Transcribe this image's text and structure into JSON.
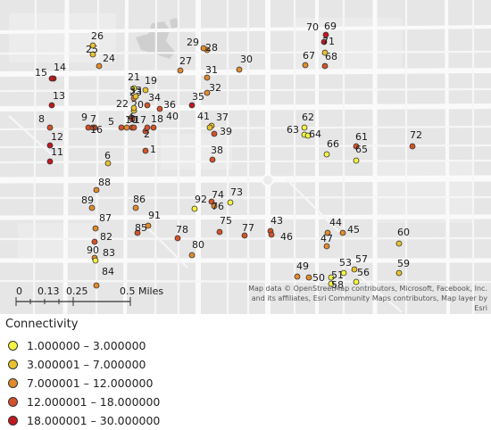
{
  "map": {
    "attribution": "Map data © OpenStreetMap contributors, Microsoft, Facebook, Inc. and its affiliates, Esri Community Maps contributors, Map layer by Esri",
    "scale_bar": {
      "labels": [
        "0",
        "0.13",
        "0.25",
        "0.5 Miles"
      ]
    }
  },
  "legend": {
    "title": "Connectivity",
    "classes": [
      {
        "label": "1.000000 – 3.000000",
        "color": "#f5f542"
      },
      {
        "label": "3.000001 – 7.000000",
        "color": "#e8c22e"
      },
      {
        "label": "7.000001 – 12.000000",
        "color": "#e28a2c"
      },
      {
        "label": "12.000001 – 18.000000",
        "color": "#d4522a"
      },
      {
        "label": "18.000001 – 30.000000",
        "color": "#c01820"
      }
    ]
  },
  "sites": [
    {
      "id": "1",
      "class": 4
    },
    {
      "id": "2",
      "class": 4
    },
    {
      "id": "3",
      "class": 4
    },
    {
      "id": "4",
      "class": 4
    },
    {
      "id": "5",
      "class": 4
    },
    {
      "id": "6",
      "class": 2
    },
    {
      "id": "7",
      "class": 4
    },
    {
      "id": "8",
      "class": 4
    },
    {
      "id": "9",
      "class": 4
    },
    {
      "id": "10",
      "class": 3
    },
    {
      "id": "11",
      "class": 5
    },
    {
      "id": "12",
      "class": 5
    },
    {
      "id": "13",
      "class": 5
    },
    {
      "id": "14",
      "class": 5
    },
    {
      "id": "15",
      "class": 5
    },
    {
      "id": "16",
      "class": 4
    },
    {
      "id": "17",
      "class": 4
    },
    {
      "id": "18",
      "class": 4
    },
    {
      "id": "19",
      "class": 2
    },
    {
      "id": "20",
      "class": 2
    },
    {
      "id": "21",
      "class": 1
    },
    {
      "id": "22",
      "class": 2
    },
    {
      "id": "23",
      "class": 3
    },
    {
      "id": "24",
      "class": 3
    },
    {
      "id": "25",
      "class": 2
    },
    {
      "id": "26",
      "class": 2
    },
    {
      "id": "27",
      "class": 3
    },
    {
      "id": "28",
      "class": 3
    },
    {
      "id": "29",
      "class": 3
    },
    {
      "id": "30",
      "class": 3
    },
    {
      "id": "31",
      "class": 3
    },
    {
      "id": "32",
      "class": 3
    },
    {
      "id": "33",
      "class": 2
    },
    {
      "id": "34",
      "class": 4
    },
    {
      "id": "35",
      "class": 5
    },
    {
      "id": "36",
      "class": 4
    },
    {
      "id": "37",
      "class": 2
    },
    {
      "id": "38",
      "class": 4
    },
    {
      "id": "39",
      "class": 4
    },
    {
      "id": "40",
      "class": 4
    },
    {
      "id": "41",
      "class": 2
    },
    {
      "id": "43",
      "class": 4
    },
    {
      "id": "44",
      "class": 3
    },
    {
      "id": "45",
      "class": 3
    },
    {
      "id": "46",
      "class": 4
    },
    {
      "id": "47",
      "class": 3
    },
    {
      "id": "49",
      "class": 3
    },
    {
      "id": "50",
      "class": 3
    },
    {
      "id": "51",
      "class": 1
    },
    {
      "id": "53",
      "class": 1
    },
    {
      "id": "56",
      "class": 1
    },
    {
      "id": "57",
      "class": 2
    },
    {
      "id": "58",
      "class": 1
    },
    {
      "id": "59",
      "class": 2
    },
    {
      "id": "60",
      "class": 2
    },
    {
      "id": "61",
      "class": 4
    },
    {
      "id": "62",
      "class": 1
    },
    {
      "id": "63",
      "class": 1
    },
    {
      "id": "64",
      "class": 1
    },
    {
      "id": "65",
      "class": 1
    },
    {
      "id": "66",
      "class": 1
    },
    {
      "id": "67",
      "class": 3
    },
    {
      "id": "68",
      "class": 4
    },
    {
      "id": "69",
      "class": 5
    },
    {
      "id": "70",
      "class": 5
    },
    {
      "id": "71",
      "class": 2
    },
    {
      "id": "72",
      "class": 4
    },
    {
      "id": "73",
      "class": 1
    },
    {
      "id": "74",
      "class": 4
    },
    {
      "id": "75",
      "class": 4
    },
    {
      "id": "76",
      "class": 3
    },
    {
      "id": "77",
      "class": 4
    },
    {
      "id": "78",
      "class": 4
    },
    {
      "id": "80",
      "class": 3
    },
    {
      "id": "82",
      "class": 4
    },
    {
      "id": "83",
      "class": 3
    },
    {
      "id": "84",
      "class": 3
    },
    {
      "id": "85",
      "class": 4
    },
    {
      "id": "86",
      "class": 3
    },
    {
      "id": "87",
      "class": 3
    },
    {
      "id": "88",
      "class": 3
    },
    {
      "id": "89",
      "class": 3
    },
    {
      "id": "90",
      "class": 1
    },
    {
      "id": "91",
      "class": 3
    },
    {
      "id": "92",
      "class": 1
    }
  ]
}
